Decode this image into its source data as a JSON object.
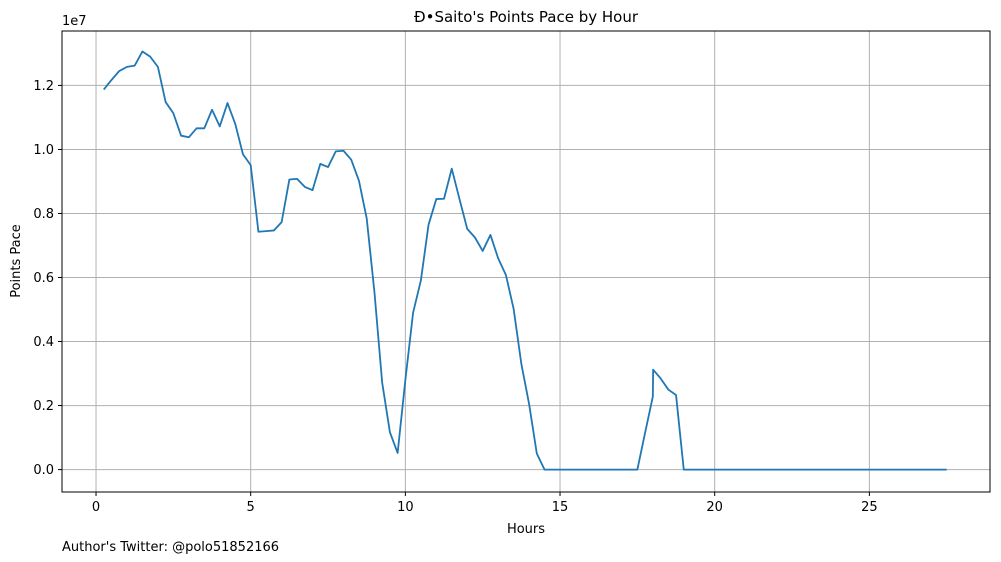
{
  "chart_data": {
    "type": "line",
    "title": "Đ•Saito's Points Pace by Hour",
    "xlabel": "Hours",
    "ylabel": "Points Pace",
    "offset_text": "1e7",
    "footnote": "Author's Twitter: @polo51852166",
    "xlim": [
      -1.1,
      28.9
    ],
    "ylim": [
      -0.07,
      1.37
    ],
    "y_scale_factor": 10000000,
    "xticks": [
      0,
      5,
      10,
      15,
      20,
      25
    ],
    "xtick_labels": [
      "0",
      "5",
      "10",
      "15",
      "20",
      "25"
    ],
    "yticks": [
      0.0,
      0.2,
      0.4,
      0.6,
      0.8,
      1.0,
      1.2
    ],
    "ytick_labels": [
      "0.0",
      "0.2",
      "0.4",
      "0.6",
      "0.8",
      "1.0",
      "1.2"
    ],
    "grid": true,
    "series": [
      {
        "color": "#1f77b4",
        "x": [
          0.25,
          0.5,
          0.75,
          1.0,
          1.25,
          1.5,
          1.75,
          2.0,
          2.25,
          2.5,
          2.75,
          3.0,
          3.25,
          3.5,
          3.75,
          4.0,
          4.25,
          4.5,
          4.75,
          5.0,
          5.25,
          5.5,
          5.75,
          6.0,
          6.25,
          6.5,
          6.75,
          7.0,
          7.25,
          7.5,
          7.75,
          8.0,
          8.25,
          8.5,
          8.75,
          9.0,
          9.25,
          9.5,
          9.75,
          10.0,
          10.25,
          10.5,
          10.75,
          11.0,
          11.25,
          11.5,
          11.75,
          12.0,
          12.25,
          12.5,
          12.75,
          13.0,
          13.25,
          13.5,
          13.75,
          14.0,
          14.25,
          14.5,
          14.75,
          15.0,
          15.25,
          15.5,
          15.75,
          16.0,
          16.25,
          16.5,
          16.75,
          17.0,
          17.25,
          17.5,
          17.75,
          18.0,
          18.01,
          18.25,
          18.5,
          18.75,
          19.0,
          19.25,
          19.5,
          20.0,
          21.0,
          22.0,
          23.0,
          24.0,
          25.0,
          26.0,
          27.0,
          27.5
        ],
        "y": [
          1.187,
          1.217,
          1.245,
          1.258,
          1.262,
          1.306,
          1.29,
          1.258,
          1.148,
          1.113,
          1.043,
          1.038,
          1.066,
          1.066,
          1.124,
          1.072,
          1.145,
          1.08,
          0.985,
          0.951,
          0.743,
          0.745,
          0.747,
          0.773,
          0.906,
          0.908,
          0.883,
          0.873,
          0.955,
          0.945,
          0.994,
          0.996,
          0.968,
          0.902,
          0.785,
          0.555,
          0.272,
          0.117,
          0.052,
          0.28,
          0.49,
          0.59,
          0.765,
          0.845,
          0.846,
          0.94,
          0.845,
          0.752,
          0.725,
          0.683,
          0.733,
          0.66,
          0.608,
          0.502,
          0.33,
          0.205,
          0.05,
          0.0,
          0.0,
          0.0,
          0.0,
          0.0,
          0.0,
          0.0,
          0.0,
          0.0,
          0.0,
          0.0,
          0.0,
          0.0,
          0.115,
          0.228,
          0.312,
          0.285,
          0.25,
          0.233,
          0.0,
          0.0,
          0.0,
          0.0,
          0.0,
          0.0,
          0.0,
          0.0,
          0.0,
          0.0,
          0.0,
          0.0
        ]
      }
    ]
  }
}
